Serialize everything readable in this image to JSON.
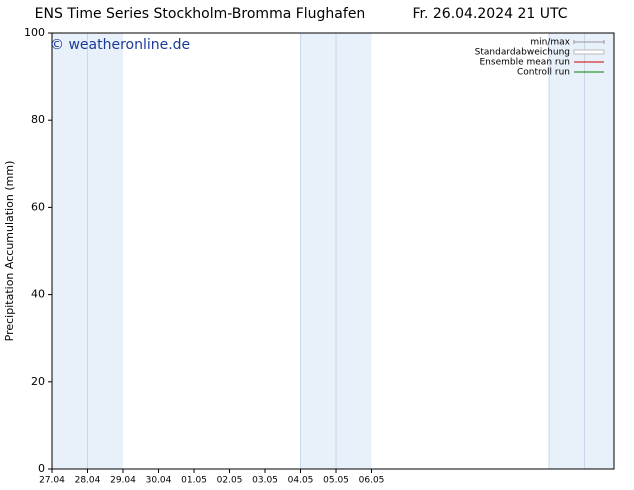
{
  "chart_data": {
    "type": "line",
    "title": "ENS Time Series Stockholm-Bromma Flughafen",
    "subtitle": "Fr. 26.04.2024 21 UTC",
    "watermark": "© weatheronline.de",
    "ylabel": "Precipitation Accumulation (mm)",
    "xlim": [
      0,
      15.83
    ],
    "xticks": [
      {
        "value": 0,
        "label": "27.04"
      },
      {
        "value": 1,
        "label": "28.04"
      },
      {
        "value": 2,
        "label": "29.04"
      },
      {
        "value": 3,
        "label": "30.04"
      },
      {
        "value": 4,
        "label": "01.05"
      },
      {
        "value": 5,
        "label": "02.05"
      },
      {
        "value": 6,
        "label": "03.05"
      },
      {
        "value": 7,
        "label": "04.05"
      },
      {
        "value": 8,
        "label": "05.05"
      },
      {
        "value": 9,
        "label": "06.05"
      }
    ],
    "ylim": [
      0,
      100
    ],
    "yticks": [
      0,
      20,
      40,
      60,
      80,
      100
    ],
    "shaded_days": [
      0,
      1,
      7,
      8,
      14,
      15
    ],
    "shade_color": "#e8f0fa",
    "series": [
      {
        "name": "min/max",
        "color": "#999999"
      },
      {
        "name": "Standardabweichung",
        "color": "#bbbbbb"
      },
      {
        "name": "Ensemble mean run",
        "color": "#cc0000"
      },
      {
        "name": "Controll run",
        "color": "#008000"
      }
    ]
  }
}
